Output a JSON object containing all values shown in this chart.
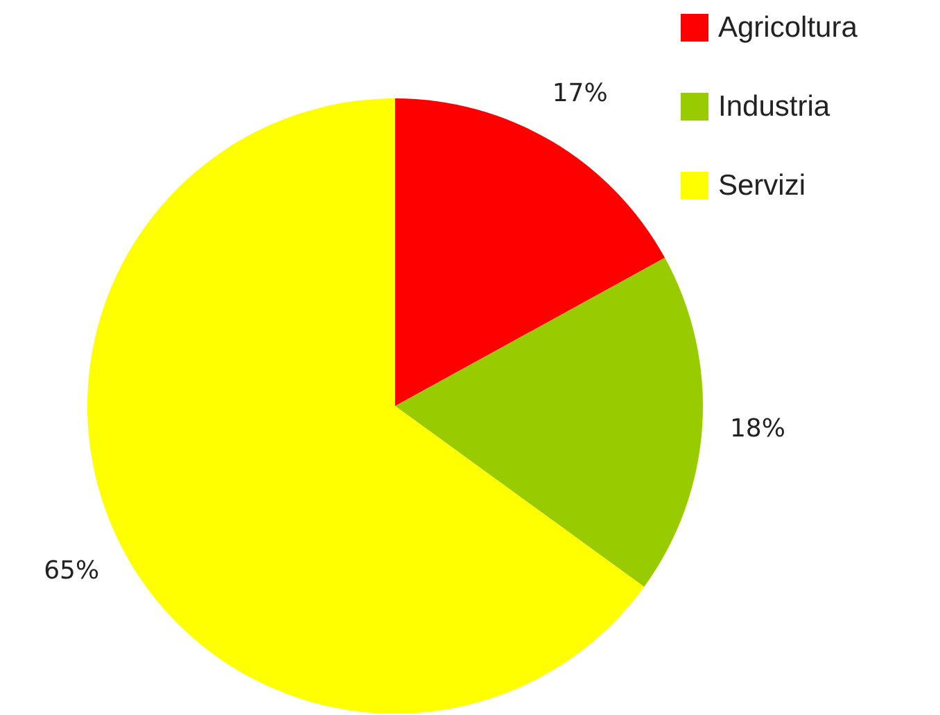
{
  "chart_data": {
    "type": "pie",
    "categories": [
      "Agricoltura",
      "Industria",
      "Servizi"
    ],
    "values": [
      17,
      18,
      65
    ],
    "colors": [
      "#ff0000",
      "#99cc00",
      "#ffff00"
    ],
    "value_labels": [
      "17%",
      "18%",
      "65%"
    ],
    "legend": "top right"
  }
}
